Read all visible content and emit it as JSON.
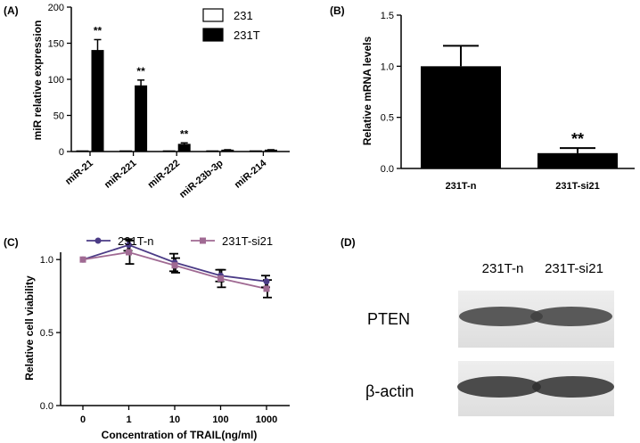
{
  "chart_data": [
    {
      "panel": "(A)",
      "type": "bar",
      "categories": [
        "miR-21",
        "miR-221",
        "miR-222",
        "miR-23b-3p",
        "miR-214"
      ],
      "series": [
        {
          "name": "231",
          "values": [
            1,
            1,
            1,
            1,
            1
          ],
          "errors": [
            0,
            0,
            0,
            0,
            0
          ],
          "fill": "#ffffff"
        },
        {
          "name": "231T",
          "values": [
            140,
            91,
            10,
            2,
            2
          ],
          "errors": [
            15,
            8,
            2,
            0.5,
            0.5
          ],
          "fill": "#000000"
        }
      ],
      "annotations": [
        "**",
        "**",
        "**",
        "",
        ""
      ],
      "ylabel": "miR relative expression",
      "ylim": [
        0,
        200
      ],
      "yticks": [
        "0",
        "50",
        "100",
        "150",
        "200"
      ]
    },
    {
      "panel": "(B)",
      "type": "bar",
      "categories": [
        "231T-n",
        "231T-si21"
      ],
      "values": [
        1.0,
        0.15
      ],
      "errors": [
        0.2,
        0.05
      ],
      "annotations": [
        "",
        "**"
      ],
      "ylabel": "Relative mRNA levels",
      "ylim": [
        0,
        1.5
      ],
      "yticks": [
        "0.0",
        "0.5",
        "1.0",
        "1.5"
      ]
    },
    {
      "panel": "(C)",
      "type": "line",
      "x": [
        "0",
        "1",
        "10",
        "100",
        "1000"
      ],
      "series": [
        {
          "name": "231T-n",
          "values": [
            1.0,
            1.1,
            0.98,
            0.89,
            0.85
          ],
          "errors": [
            0,
            0.04,
            0.06,
            0.04,
            0.04
          ],
          "color": "#4b3b86"
        },
        {
          "name": "231T-si21",
          "values": [
            1.0,
            1.05,
            0.96,
            0.87,
            0.8
          ],
          "errors": [
            0,
            0.08,
            0.05,
            0.06,
            0.06
          ],
          "color": "#a06a93"
        }
      ],
      "xlabel": "Concentration of TRAIL(ng/ml)",
      "ylabel": "Relative cell viability",
      "ylim": [
        0,
        1.05
      ],
      "yticks": [
        "0.0",
        "0.5",
        "1.0"
      ]
    }
  ],
  "blot": {
    "panel": "(D)",
    "lanes": [
      "231T-n",
      "231T-si21"
    ],
    "proteins": [
      "PTEN",
      "β-actin"
    ]
  }
}
